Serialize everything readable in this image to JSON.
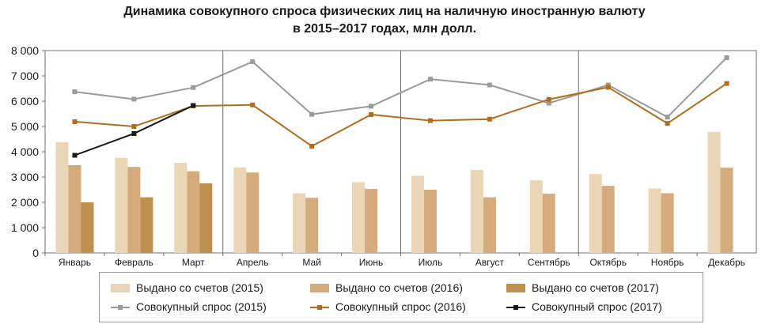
{
  "chart_data": {
    "type": "bar",
    "title": "Динамика совокупного спроса физических лиц на наличную иностранную валюту",
    "subtitle": "в 2015–2017 годах, млн долл.",
    "xlabel": "",
    "ylabel": "",
    "categories": [
      "Январь",
      "Февраль",
      "Март",
      "Апрель",
      "Май",
      "Июнь",
      "Июль",
      "Август",
      "Сентябрь",
      "Октябрь",
      "Ноябрь",
      "Декабрь"
    ],
    "ylim": [
      0,
      8000
    ],
    "yticks": [
      0,
      1000,
      2000,
      3000,
      4000,
      5000,
      6000,
      7000,
      8000
    ],
    "ytick_labels": [
      "0",
      "1 000",
      "2 000",
      "3 000",
      "4 000",
      "5 000",
      "6 000",
      "7 000",
      "8 000"
    ],
    "grid": false,
    "quarter_separators": true,
    "legend_position": "bottom",
    "series": [
      {
        "name": "Выдано со счетов (2015)",
        "kind": "bar",
        "color": "#ead5b7",
        "values": [
          4380,
          3760,
          3560,
          3380,
          2360,
          2800,
          3050,
          3280,
          2870,
          3120,
          2550,
          4780
        ]
      },
      {
        "name": "Выдано со счетов (2016)",
        "kind": "bar",
        "color": "#d5ab7c",
        "values": [
          3470,
          3400,
          3230,
          3180,
          2180,
          2530,
          2500,
          2200,
          2340,
          2650,
          2360,
          3370
        ]
      },
      {
        "name": "Выдано со счетов (2017)",
        "kind": "bar",
        "color": "#bf8f4d",
        "values": [
          2000,
          2200,
          2750,
          null,
          null,
          null,
          null,
          null,
          null,
          null,
          null,
          null
        ]
      },
      {
        "name": "Совокупный спрос (2015)",
        "kind": "line",
        "color": "#9a9a9a",
        "values": [
          6370,
          6080,
          6540,
          7560,
          5480,
          5800,
          6870,
          6640,
          5920,
          6640,
          5370,
          7720
        ]
      },
      {
        "name": "Совокупный спрос (2016)",
        "kind": "line",
        "color": "#b06e1e",
        "values": [
          5190,
          5000,
          5810,
          5850,
          4220,
          5470,
          5230,
          5290,
          6070,
          6550,
          5120,
          6700
        ]
      },
      {
        "name": "Совокупный спрос (2017)",
        "kind": "line",
        "color": "#1a1a1a",
        "values": [
          3860,
          4720,
          5830,
          null,
          null,
          null,
          null,
          null,
          null,
          null,
          null,
          null
        ]
      }
    ]
  }
}
